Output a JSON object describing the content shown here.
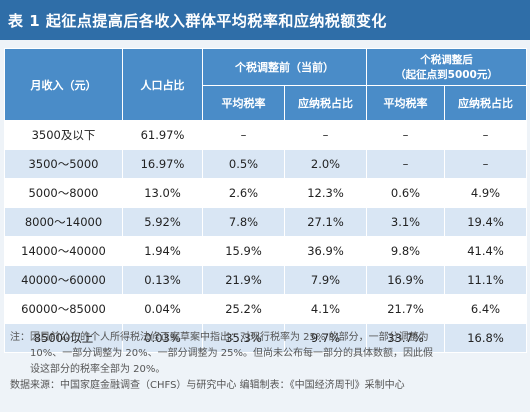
{
  "title": "表 1  起征点提高后各收入群体平均税率和应纳税额变化",
  "header": {
    "col_income": "月收入（元）",
    "col_population": "人口占比",
    "group_current": "个税调整前（当前）",
    "group_after_line1": "个税调整后",
    "group_after_line2": "（起征点到5000元）",
    "col_avg_rate_before": "平均税率",
    "col_tax_share_before": "应纳税占比",
    "col_avg_rate_after": "平均税率",
    "col_tax_share_after": "应纳税占比"
  },
  "rows": [
    {
      "income": "3500及以下",
      "population": "61.97%",
      "avg_rate_before": "–",
      "tax_share_before": "–",
      "avg_rate_after": "–",
      "tax_share_after": "–"
    },
    {
      "income": "3500～5000",
      "population": "16.97%",
      "avg_rate_before": "0.5%",
      "tax_share_before": "2.0%",
      "avg_rate_after": "–",
      "tax_share_after": "–"
    },
    {
      "income": "5000～8000",
      "population": "13.0%",
      "avg_rate_before": "2.6%",
      "tax_share_before": "12.3%",
      "avg_rate_after": "0.6%",
      "tax_share_after": "4.9%"
    },
    {
      "income": "8000～14000",
      "population": "5.92%",
      "avg_rate_before": "7.8%",
      "tax_share_before": "27.1%",
      "avg_rate_after": "3.1%",
      "tax_share_after": "19.4%"
    },
    {
      "income": "14000～40000",
      "population": "1.94%",
      "avg_rate_before": "15.9%",
      "tax_share_before": "36.9%",
      "avg_rate_after": "9.8%",
      "tax_share_after": "41.4%"
    },
    {
      "income": "40000～60000",
      "population": "0.13%",
      "avg_rate_before": "21.9%",
      "tax_share_before": "7.9%",
      "avg_rate_after": "16.9%",
      "tax_share_after": "11.1%"
    },
    {
      "income": "60000～85000",
      "population": "0.04%",
      "avg_rate_before": "25.2%",
      "tax_share_before": "4.1%",
      "avg_rate_after": "21.7%",
      "tax_share_after": "6.4%"
    },
    {
      "income": "85000以上",
      "population": "0.03%",
      "avg_rate_before": "35.3%",
      "tax_share_before": "9.7%",
      "avg_rate_after": "33.7%",
      "tax_share_after": "16.8%"
    }
  ],
  "notes": {
    "line1": "注：因目前公布的个人所得税法修正案草案中指出：对现行税率为 25% 的部分，一部分调整为",
    "line2": "10%、一部分调整为 20%、一部分调整为 25%。但尚未公布每一部分的具体数额，因此假",
    "line3": "设这部分的税率全部为 20%。",
    "source": "数据来源：中国家庭金融调查（CHFS）与研究中心    编辑制表：《中国经济周刊》采制中心"
  }
}
